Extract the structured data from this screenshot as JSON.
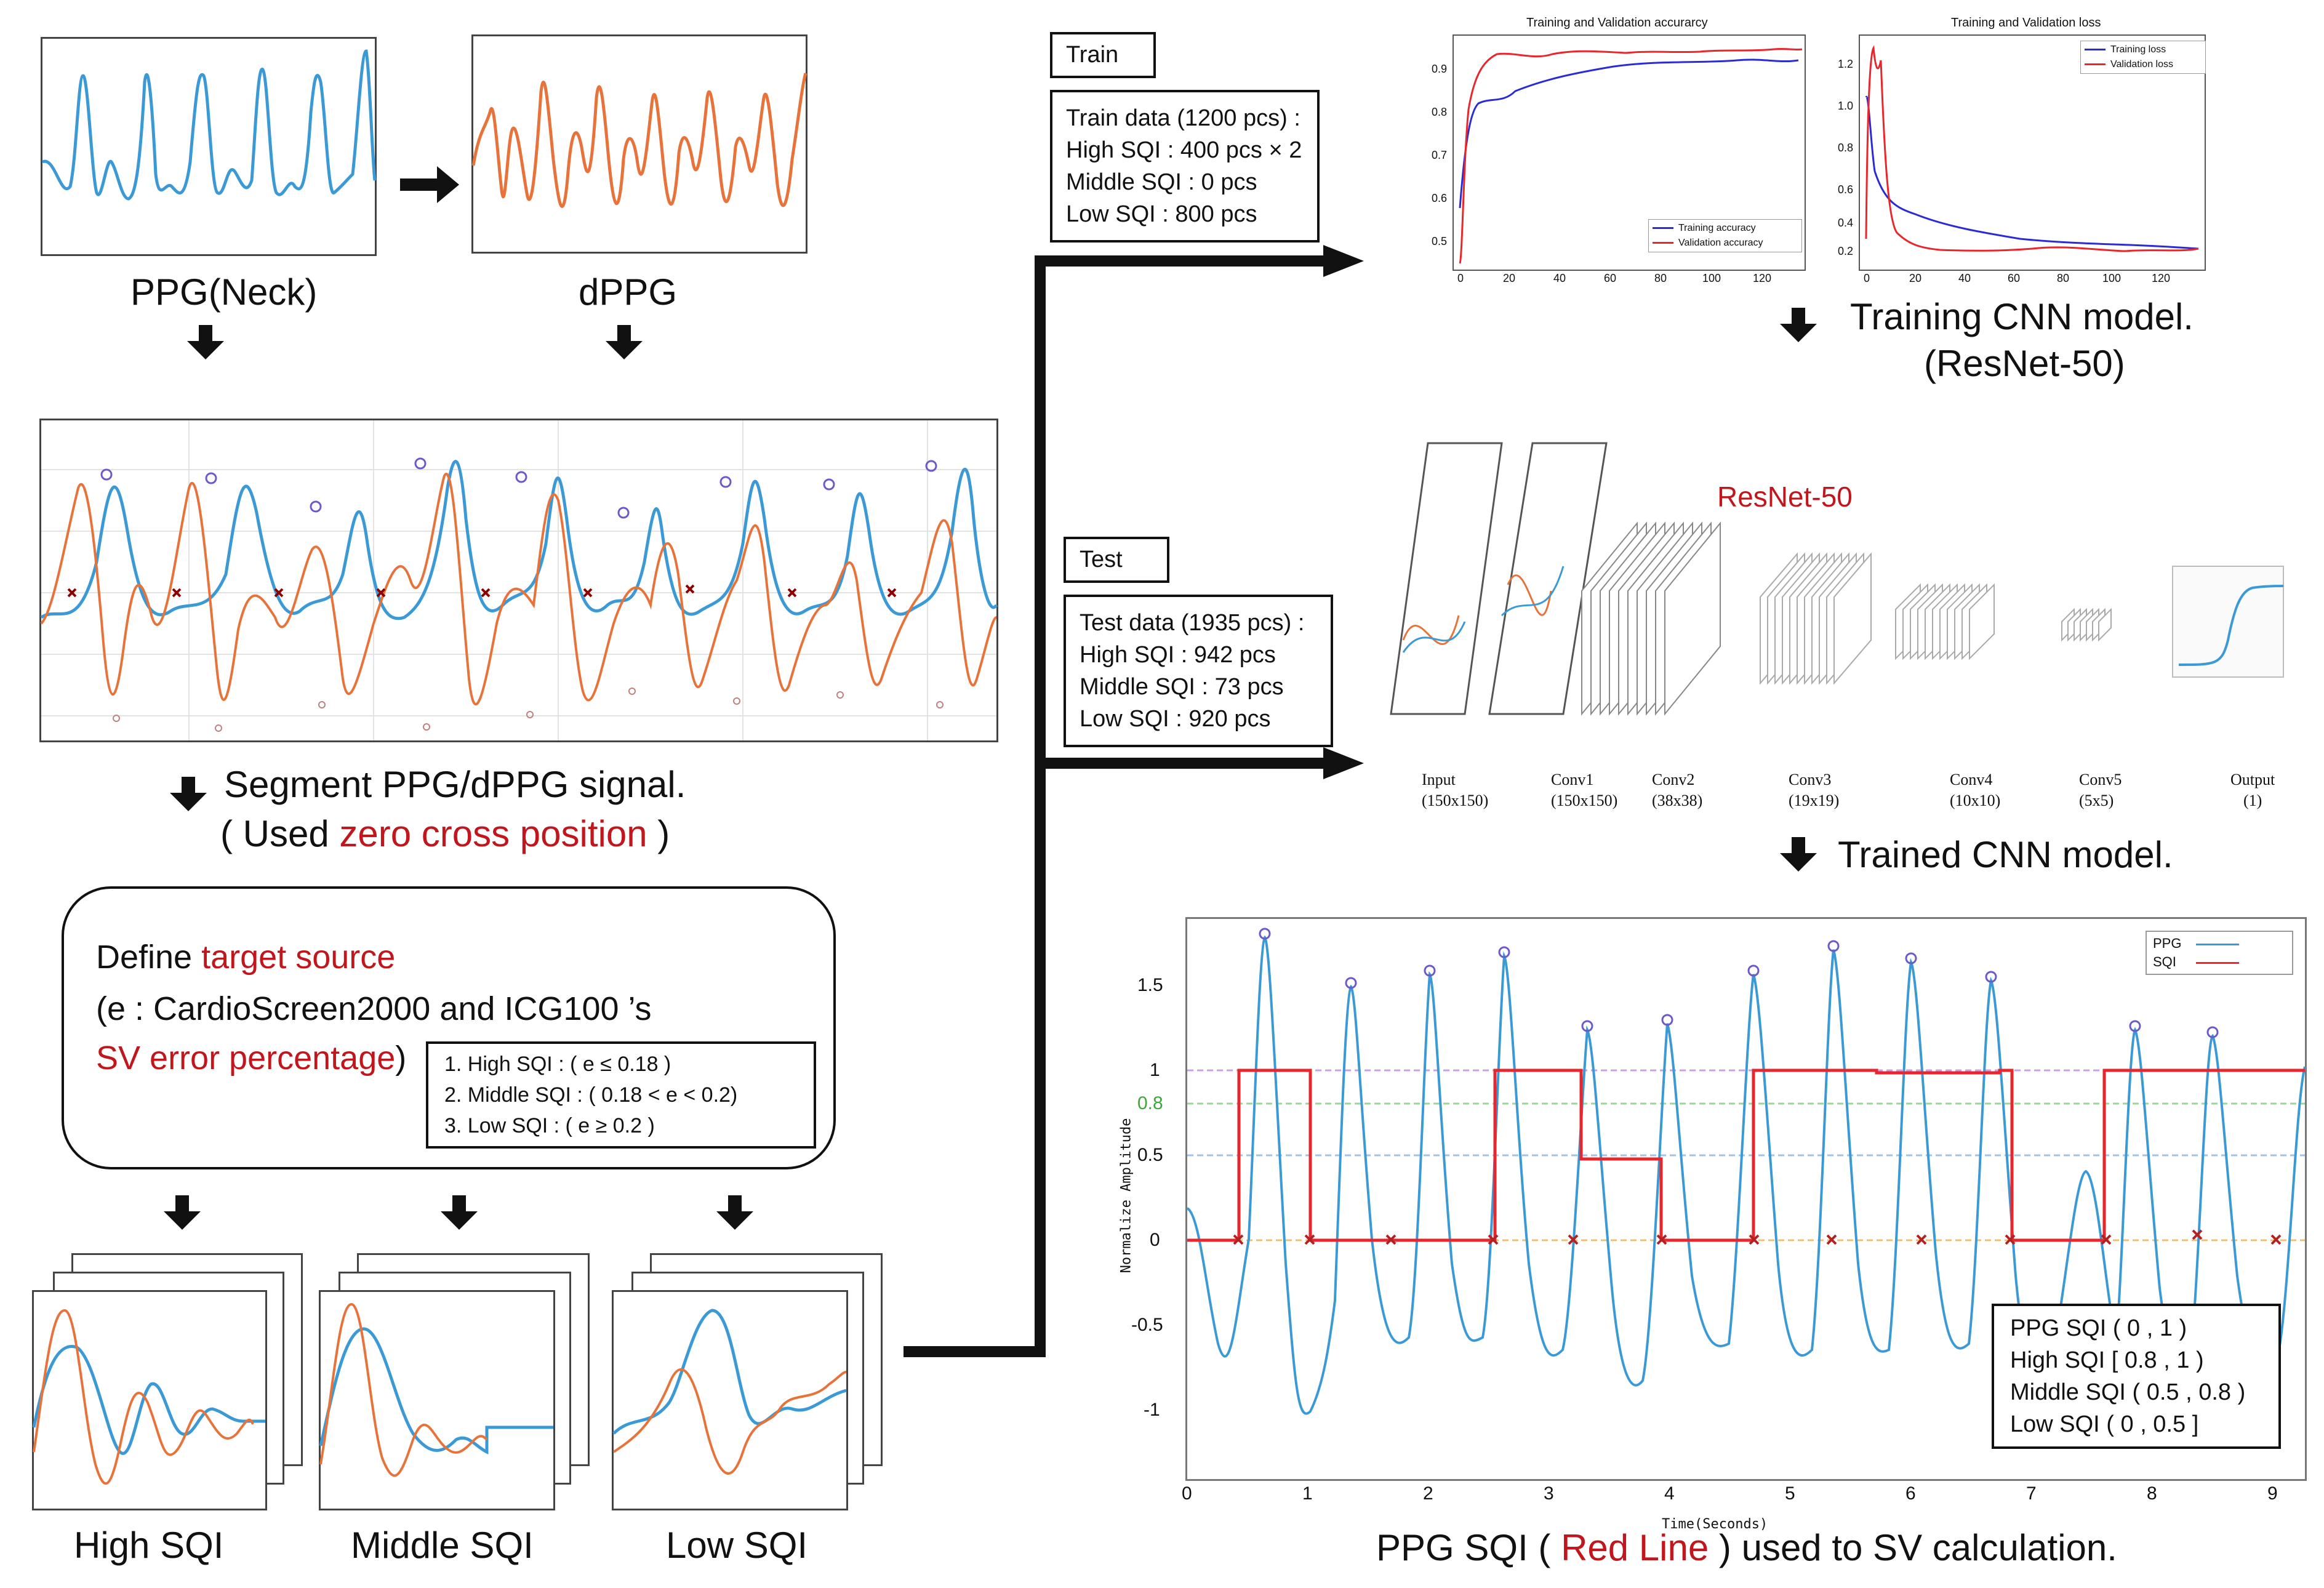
{
  "left": {
    "ppg_neck_label": "PPG(Neck)",
    "dppg_label": "dPPG",
    "segment_line1": "Segment PPG/dPPG signal.",
    "segment_line2_pre": "( Used ",
    "segment_line2_red": "zero cross position",
    "segment_line2_post": " )",
    "define_line1_pre": "Define ",
    "define_line1_red": "target source",
    "define_line2": "(e : CardioScreen2000 and ICG100 ’s",
    "define_line3_red": "SV error percentage",
    "define_line3_post": ")",
    "criteria": [
      "1.  High SQI : ( e ≤ 0.18 )",
      "2.  Middle SQI : ( 0.18 < e < 0.2)",
      "3.  Low SQI : ( e  ≥ 0.2 )"
    ],
    "class_labels": [
      "High SQI",
      "Middle SQI",
      "Low SQI"
    ]
  },
  "train": {
    "tag": "Train",
    "lines": [
      "Train data (1200 pcs) :",
      "High SQI : 400 pcs × 2",
      "Middle SQI : 0 pcs",
      "Low SQI : 800 pcs"
    ]
  },
  "test": {
    "tag": "Test",
    "lines": [
      "Test data (1935 pcs) :",
      "High SQI : 942 pcs",
      "Middle SQI : 73 pcs",
      "Low SQI : 920 pcs"
    ]
  },
  "acc_chart": {
    "title": "Training and Validation accurarcy",
    "yticks": [
      "0.9",
      "0.8",
      "0.7",
      "0.6",
      "0.5"
    ],
    "xticks": [
      "0",
      "20",
      "40",
      "60",
      "80",
      "100",
      "120"
    ],
    "legend": [
      "Training accuracy",
      "Validation accuracy"
    ]
  },
  "loss_chart": {
    "title": "Training and Validation loss",
    "yticks": [
      "1.2",
      "1.0",
      "0.8",
      "0.6",
      "0.4",
      "0.2"
    ],
    "xticks": [
      "0",
      "20",
      "40",
      "60",
      "80",
      "100",
      "120"
    ],
    "legend": [
      "Training loss",
      "Validation loss"
    ]
  },
  "training_caption_line1": "Training CNN model.",
  "training_caption_line2": "(ResNet-50)",
  "resnet": {
    "title": "ResNet-50",
    "layers": [
      {
        "name": "Input",
        "size": "(150x150)"
      },
      {
        "name": "Conv1",
        "size": "(150x150)"
      },
      {
        "name": "Conv2",
        "size": "(38x38)"
      },
      {
        "name": "Conv3",
        "size": "(19x19)"
      },
      {
        "name": "Conv4",
        "size": "(10x10)"
      },
      {
        "name": "Conv5",
        "size": "(5x5)"
      },
      {
        "name": "Output",
        "size": "(1)"
      }
    ]
  },
  "trained_caption": "Trained CNN model.",
  "sqi_plot": {
    "yticks": [
      "1.5",
      "1",
      "0.8",
      "0.5",
      "0",
      "-0.5",
      "-1"
    ],
    "xticks": [
      "0",
      "1",
      "2",
      "3",
      "4",
      "5",
      "6",
      "7",
      "8",
      "9"
    ],
    "ylabel": "Normalize Amplitude",
    "xlabel": "Time(Seconds)",
    "legend_series": [
      "PPG",
      "SQI"
    ],
    "legend_box": [
      "PPG SQI  ( 0 , 1 )",
      "High SQI [ 0.8 , 1 )",
      "Middle SQI   ( 0.5 , 0.8 )",
      "Low SQI  ( 0 , 0.5 ]"
    ]
  },
  "bottom_caption_pre": "PPG SQI  (",
  "bottom_caption_red": "Red Line",
  "bottom_caption_post": " ) used to SV calculation.",
  "colors": {
    "ppg": "#3b9ad6",
    "dppg": "#e8733a",
    "red": "#c0161c",
    "acc_train": "#2b2bd6",
    "acc_val": "#e8262b"
  }
}
